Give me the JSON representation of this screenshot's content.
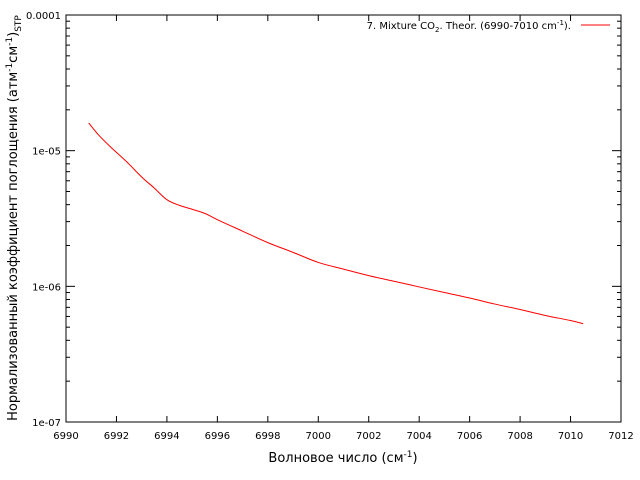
{
  "chart_data": {
    "type": "line",
    "xlabel": {
      "main": "Волновое число (см",
      "sup": "-1",
      "tail": ")"
    },
    "ylabel": {
      "part1": "Нормализованный коэффициент поглощения (атм",
      "sup1": "-1",
      "part2": "см",
      "sup2": "-1",
      "part3": ")",
      "sub": "STP"
    },
    "xlim": [
      6990,
      7012
    ],
    "ylim": [
      1e-07,
      0.0001
    ],
    "yscale": "log",
    "x_ticks": [
      "6990",
      "6992",
      "6994",
      "6996",
      "6998",
      "7000",
      "7002",
      "7004",
      "7006",
      "7008",
      "7010",
      "7012"
    ],
    "y_ticks": [
      {
        "value": 1e-07,
        "label": "1e-07"
      },
      {
        "value": 1e-06,
        "label": "1e-06"
      },
      {
        "value": 1e-05,
        "label": "1e-05"
      },
      {
        "value": 0.0001,
        "label": "0.0001"
      }
    ],
    "grid": false,
    "legend_position": "top-right",
    "series": [
      {
        "name": {
          "a": "7. Mixture CO",
          "sub": "2",
          "b": ". Theor. (6990-7010 cm",
          "sup": "-1",
          "c": ")."
        },
        "color": "#ff0000",
        "x": [
          6990.9,
          6991.3,
          6991.8,
          6992.4,
          6993.0,
          6993.5,
          6994.0,
          6994.5,
          6995.0,
          6995.5,
          6996.0,
          6997.0,
          6998.0,
          6999.0,
          7000.0,
          7001.0,
          7002.0,
          7003.0,
          7004.0,
          7005.0,
          7006.0,
          7007.0,
          7008.0,
          7009.0,
          7010.0,
          7010.5
        ],
        "y": [
          1.6e-05,
          1.3e-05,
          1.05e-05,
          8.3e-06,
          6.4e-06,
          5.3e-06,
          4.35e-06,
          3.95e-06,
          3.7e-06,
          3.45e-06,
          3.1e-06,
          2.55e-06,
          2.1e-06,
          1.78e-06,
          1.5e-06,
          1.34e-06,
          1.2e-06,
          1.09e-06,
          9.9e-07,
          9e-07,
          8.2e-07,
          7.4e-07,
          6.75e-07,
          6.1e-07,
          5.6e-07,
          5.3e-07
        ]
      }
    ]
  }
}
